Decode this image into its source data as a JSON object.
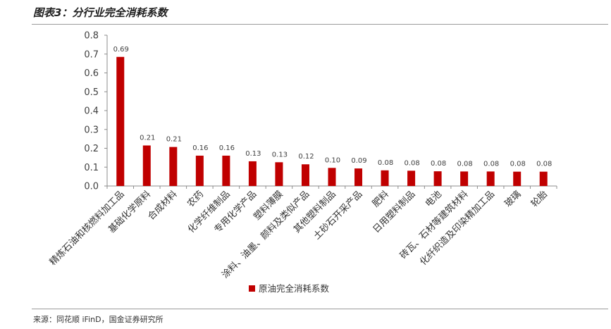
{
  "header": {
    "title": "图表3：分行业完全消耗系数"
  },
  "footer": {
    "source": "来源：同花顺 iFinD，国金证券研究所"
  },
  "chart_data": {
    "type": "bar",
    "categories": [
      "精炼石油和核燃料加工品",
      "基础化学原料",
      "合成材料",
      "农药",
      "化学纤维制品",
      "专用化学产品",
      "塑料薄膜",
      "涂料、油墨、颜料及类似产品",
      "其他塑料制品",
      "土砂石开采产品",
      "肥料",
      "日用塑料制品",
      "电池",
      "砖瓦、石材等建筑材料",
      "化纤织造及印染精加工品",
      "玻璃",
      "轮胎"
    ],
    "series": [
      {
        "name": "原油完全消耗系数",
        "values": [
          0.685,
          0.215,
          0.207,
          0.161,
          0.161,
          0.131,
          0.126,
          0.115,
          0.096,
          0.093,
          0.083,
          0.081,
          0.078,
          0.077,
          0.077,
          0.076,
          0.076
        ],
        "labels": [
          "0.69",
          "0.21",
          "0.21",
          "0.16",
          "0.16",
          "0.13",
          "0.13",
          "0.12",
          "0.10",
          "0.09",
          "0.08",
          "0.08",
          "0.08",
          "0.08",
          "0.08",
          "0.08",
          "0.08"
        ],
        "color": "#c00000"
      }
    ],
    "ylim": [
      0,
      0.8
    ],
    "yticks": [
      "0.0",
      "0.1",
      "0.2",
      "0.3",
      "0.4",
      "0.5",
      "0.6",
      "0.7",
      "0.8"
    ],
    "legend_position": "bottom",
    "grid": false
  }
}
